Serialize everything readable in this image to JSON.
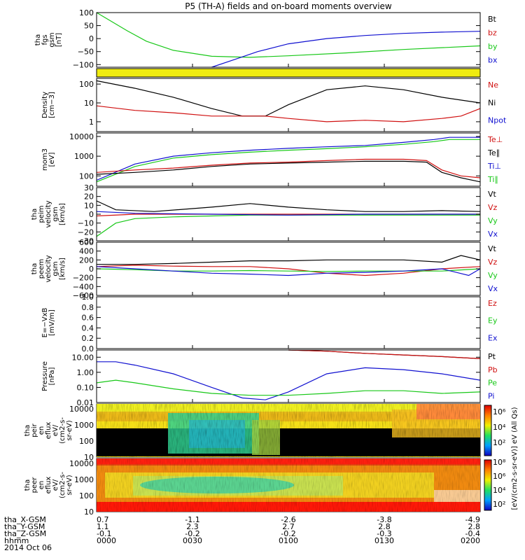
{
  "title": "P5 (TH-A) fields and on-board moments overview",
  "colors": {
    "black": "#000000",
    "red": "#d01010",
    "green": "#18c818",
    "blue": "#1010d0",
    "yellow": "#f0ec10"
  },
  "ephemeris": {
    "rows": [
      {
        "label": "tha_X-GSM",
        "values": [
          "0.7",
          "-1.1",
          "-2.6",
          "-3.8",
          "-4.9"
        ]
      },
      {
        "label": "tha_Y-GSM",
        "values": [
          "1.1",
          "2.3",
          "2.7",
          "2.8",
          "2.8"
        ]
      },
      {
        "label": "tha_Z-GSM",
        "values": [
          "-0.1",
          "-0.2",
          "-0.2",
          "-0.3",
          "-0.4"
        ]
      },
      {
        "label": "hhmm",
        "values": [
          "0000",
          "0030",
          "0100",
          "0130",
          "0200"
        ]
      }
    ],
    "date": "2014 Oct 06"
  },
  "colorbar": {
    "label": "[eV/(cm2-s-sr-eV)] eV (All Qs)",
    "ticks_top": [
      "10⁶",
      "10⁴",
      "10²"
    ],
    "ticks_bottom": [
      "10⁸",
      "10⁶",
      "10⁴",
      "10²"
    ]
  },
  "chart_data": [
    {
      "type": "line",
      "ylabel": [
        "tha",
        "fgs",
        "gsm",
        "[nT]"
      ],
      "ylim": [
        -110,
        100
      ],
      "ticks": [
        "100",
        "50",
        "0",
        "−50",
        "−100"
      ],
      "legend": [
        {
          "name": "Bt",
          "color": "black"
        },
        {
          "name": "bz",
          "color": "red"
        },
        {
          "name": "by",
          "color": "green"
        },
        {
          "name": "bx",
          "color": "blue"
        }
      ],
      "series": [
        {
          "name": "by",
          "color": "green",
          "x": [
            0,
            0.08,
            0.13,
            0.2,
            0.3,
            0.4,
            0.5,
            0.65,
            0.8,
            1
          ],
          "y": [
            100,
            30,
            -10,
            -45,
            -68,
            -72,
            -66,
            -55,
            -42,
            -28
          ]
        },
        {
          "name": "bx",
          "color": "blue",
          "x": [
            0.3,
            0.36,
            0.42,
            0.5,
            0.6,
            0.7,
            0.8,
            0.9,
            1
          ],
          "y": [
            -110,
            -80,
            -50,
            -20,
            0,
            12,
            20,
            25,
            28
          ]
        }
      ]
    },
    {
      "type": "bar",
      "name": "quality",
      "color": "yellow"
    },
    {
      "type": "line",
      "log": true,
      "ylabel": [
        "Density",
        "[cm−3]"
      ],
      "ylim": [
        0.3,
        200
      ],
      "ticks": [
        "100",
        "10",
        "1"
      ],
      "legend": [
        {
          "name": "Ne",
          "color": "red"
        },
        {
          "name": "Ni",
          "color": "black"
        },
        {
          "name": "Npot",
          "color": "blue"
        }
      ],
      "series": [
        {
          "name": "Ni",
          "color": "black",
          "x": [
            0,
            0.1,
            0.2,
            0.3,
            0.38,
            0.44,
            0.5,
            0.6,
            0.7,
            0.8,
            0.9,
            1
          ],
          "y": [
            150,
            60,
            20,
            5,
            2,
            2,
            8,
            50,
            80,
            50,
            20,
            10
          ]
        },
        {
          "name": "Ne",
          "color": "red",
          "x": [
            0,
            0.1,
            0.2,
            0.3,
            0.38,
            0.44,
            0.5,
            0.6,
            0.7,
            0.8,
            0.9,
            0.95,
            1
          ],
          "y": [
            7,
            4,
            3,
            2,
            2,
            2,
            1.5,
            1,
            1.2,
            1,
            1.5,
            2,
            5
          ]
        }
      ]
    },
    {
      "type": "line",
      "log": true,
      "ylabel": [
        "mom3",
        "[eV]"
      ],
      "ylim": [
        30,
        15000
      ],
      "ticks": [
        "10000",
        "1000",
        "100"
      ],
      "legend": [
        {
          "name": "Te⊥",
          "color": "red"
        },
        {
          "name": "Te∥",
          "color": "black"
        },
        {
          "name": "Ti⊥",
          "color": "blue"
        },
        {
          "name": "Ti∥",
          "color": "green"
        }
      ],
      "series": [
        {
          "name": "Ti⊥",
          "color": "blue",
          "x": [
            0,
            0.1,
            0.2,
            0.3,
            0.4,
            0.5,
            0.6,
            0.7,
            0.8,
            0.88,
            0.92,
            1
          ],
          "y": [
            60,
            400,
            1000,
            1500,
            2000,
            2500,
            3000,
            3500,
            5000,
            7000,
            9000,
            9000
          ]
        },
        {
          "name": "Ti∥",
          "color": "green",
          "x": [
            0,
            0.1,
            0.2,
            0.3,
            0.4,
            0.5,
            0.6,
            0.7,
            0.8,
            0.88,
            0.92,
            1
          ],
          "y": [
            50,
            300,
            800,
            1200,
            1600,
            2000,
            2400,
            3000,
            4000,
            5500,
            7000,
            7000
          ]
        },
        {
          "name": "Te⊥",
          "color": "red",
          "x": [
            0,
            0.1,
            0.2,
            0.3,
            0.4,
            0.5,
            0.6,
            0.7,
            0.8,
            0.86,
            0.9,
            0.95,
            1
          ],
          "y": [
            150,
            200,
            250,
            350,
            450,
            500,
            600,
            700,
            700,
            600,
            200,
            100,
            80
          ]
        },
        {
          "name": "Te∥",
          "color": "black",
          "x": [
            0,
            0.1,
            0.2,
            0.3,
            0.4,
            0.5,
            0.6,
            0.7,
            0.8,
            0.86,
            0.9,
            0.95,
            1
          ],
          "y": [
            120,
            150,
            200,
            300,
            400,
            450,
            500,
            550,
            550,
            500,
            150,
            80,
            50
          ]
        }
      ]
    },
    {
      "type": "line",
      "ylabel": [
        "tha",
        "peim",
        "velocity",
        "gsm",
        "[km/s]"
      ],
      "ylim": [
        -30,
        30
      ],
      "ticks": [
        "30",
        "20",
        "10",
        "0",
        "−10",
        "−20",
        "−30"
      ],
      "legend": [
        {
          "name": "Vt",
          "color": "black"
        },
        {
          "name": "Vz",
          "color": "red"
        },
        {
          "name": "Vy",
          "color": "green"
        },
        {
          "name": "Vx",
          "color": "blue"
        }
      ],
      "series": [
        {
          "name": "Vt",
          "color": "black",
          "x": [
            0,
            0.05,
            0.15,
            0.3,
            0.4,
            0.5,
            0.6,
            0.7,
            0.8,
            0.9,
            1
          ],
          "y": [
            15,
            5,
            3,
            8,
            12,
            8,
            5,
            3,
            3,
            4,
            3
          ]
        },
        {
          "name": "Vz",
          "color": "red",
          "x": [
            0,
            0.1,
            0.3,
            0.5,
            0.7,
            0.9,
            1
          ],
          "y": [
            -2,
            0,
            0,
            0,
            0,
            0,
            0
          ]
        },
        {
          "name": "Vy",
          "color": "green",
          "x": [
            0,
            0.05,
            0.1,
            0.2,
            0.3,
            0.4,
            0.6,
            0.8,
            1
          ],
          "y": [
            -25,
            -10,
            -5,
            -3,
            -2,
            -1,
            -1,
            -1,
            -1
          ]
        },
        {
          "name": "Vx",
          "color": "blue",
          "x": [
            0,
            0.1,
            0.3,
            0.5,
            0.7,
            0.9,
            1
          ],
          "y": [
            3,
            1,
            0,
            -1,
            0,
            0,
            0
          ]
        }
      ]
    },
    {
      "type": "line",
      "ylabel": [
        "tha",
        "peem",
        "velocity",
        "gsm",
        "[km/s]"
      ],
      "ylim": [
        -600,
        600
      ],
      "ticks": [
        "600",
        "400",
        "200",
        "0",
        "−200",
        "−400",
        "−600"
      ],
      "legend": [
        {
          "name": "Vt",
          "color": "black"
        },
        {
          "name": "Vz",
          "color": "red"
        },
        {
          "name": "Vy",
          "color": "green"
        },
        {
          "name": "Vx",
          "color": "blue"
        }
      ],
      "series": [
        {
          "name": "Vt",
          "color": "black",
          "x": [
            0,
            0.1,
            0.2,
            0.3,
            0.4,
            0.5,
            0.6,
            0.7,
            0.8,
            0.9,
            0.95,
            1
          ],
          "y": [
            100,
            100,
            120,
            150,
            180,
            180,
            200,
            200,
            200,
            150,
            300,
            200
          ]
        },
        {
          "name": "Vz",
          "color": "red",
          "x": [
            0,
            0.1,
            0.2,
            0.3,
            0.4,
            0.5,
            0.6,
            0.7,
            0.8,
            0.9,
            1
          ],
          "y": [
            50,
            80,
            60,
            50,
            50,
            0,
            -100,
            -150,
            -100,
            0,
            50
          ]
        },
        {
          "name": "Vy",
          "color": "green",
          "x": [
            0,
            0.1,
            0.2,
            0.3,
            0.4,
            0.5,
            0.6,
            0.7,
            0.8,
            0.9,
            1
          ],
          "y": [
            0,
            -20,
            -50,
            -50,
            -40,
            -50,
            -60,
            -50,
            -50,
            -50,
            0
          ]
        },
        {
          "name": "Vx",
          "color": "blue",
          "x": [
            0,
            0.1,
            0.2,
            0.3,
            0.4,
            0.5,
            0.6,
            0.7,
            0.8,
            0.9,
            0.97,
            1
          ],
          "y": [
            50,
            0,
            -50,
            -100,
            -120,
            -150,
            -100,
            -80,
            -50,
            0,
            -150,
            0
          ]
        }
      ]
    },
    {
      "type": "line",
      "ylabel": [
        "E=−VxB",
        "[mV/m]"
      ],
      "ylim": [
        0,
        1
      ],
      "ticks": [
        "1.0",
        "0.8",
        "0.6",
        "0.4",
        "0.2",
        "0.0"
      ],
      "legend": [
        {
          "name": "Ez",
          "color": "red"
        },
        {
          "name": "Ey",
          "color": "green"
        },
        {
          "name": "Ex",
          "color": "blue"
        }
      ],
      "series": []
    },
    {
      "type": "line",
      "log": true,
      "ylabel": [
        "Pressure",
        "[nPa]"
      ],
      "ylim": [
        0.01,
        30
      ],
      "ticks": [
        "10.00",
        "1.00",
        "0.10",
        "0.01"
      ],
      "legend": [
        {
          "name": "Pt",
          "color": "black"
        },
        {
          "name": "Pb",
          "color": "red"
        },
        {
          "name": "Pe",
          "color": "green"
        },
        {
          "name": "Pi",
          "color": "blue"
        }
      ],
      "series": [
        {
          "name": "Pi",
          "color": "blue",
          "x": [
            0,
            0.05,
            0.1,
            0.2,
            0.3,
            0.38,
            0.44,
            0.5,
            0.6,
            0.7,
            0.8,
            0.9,
            1
          ],
          "y": [
            5,
            5,
            3,
            0.8,
            0.1,
            0.02,
            0.015,
            0.05,
            0.8,
            2,
            1.5,
            0.8,
            0.3
          ]
        },
        {
          "name": "Pe",
          "color": "green",
          "x": [
            0,
            0.05,
            0.1,
            0.2,
            0.3,
            0.4,
            0.5,
            0.6,
            0.7,
            0.8,
            0.9,
            1
          ],
          "y": [
            0.2,
            0.3,
            0.2,
            0.08,
            0.04,
            0.03,
            0.03,
            0.04,
            0.06,
            0.06,
            0.04,
            0.05
          ]
        },
        {
          "name": "Pt",
          "color": "black",
          "x": [
            0.5,
            0.6,
            0.7,
            0.8,
            0.9,
            1
          ],
          "y": [
            30,
            25,
            18,
            14,
            11,
            8
          ]
        },
        {
          "name": "Pb",
          "color": "red",
          "x": [
            0.5,
            0.6,
            0.7,
            0.8,
            0.9,
            1
          ],
          "y": [
            30,
            25,
            18,
            14,
            11,
            8
          ]
        }
      ]
    },
    {
      "type": "heatmap",
      "ylabel": [
        "tha",
        "peir",
        "en",
        "eflux",
        "eV/",
        "(cm2-s-",
        "sr-eV)"
      ],
      "ylim": [
        10,
        20000
      ],
      "ticks": [
        "10000",
        "1000",
        "100",
        "10"
      ],
      "log": true
    },
    {
      "type": "heatmap",
      "ylabel": [
        "tha",
        "peer",
        "en",
        "eflux",
        "eV/",
        "(cm2-s-",
        "sr-eV)"
      ],
      "ylim": [
        10,
        20000
      ],
      "ticks": [
        "10000",
        "1000",
        "100",
        "10"
      ],
      "log": true
    }
  ]
}
